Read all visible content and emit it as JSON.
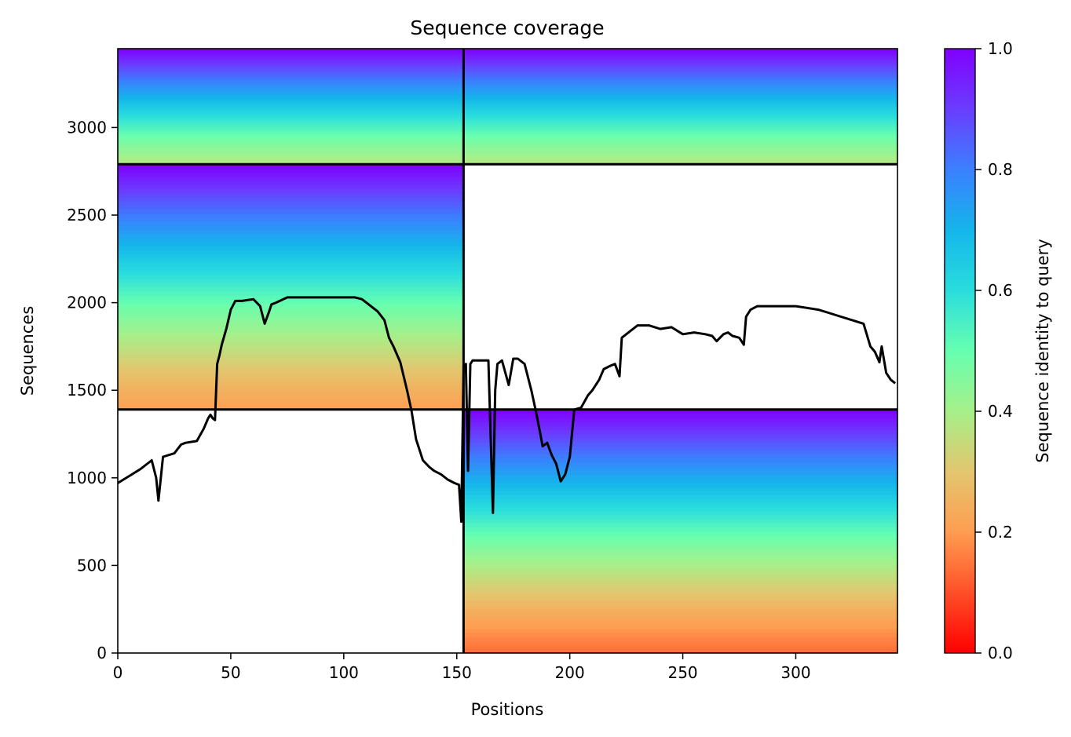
{
  "chart_data": {
    "type": "heatmap",
    "title": "Sequence coverage",
    "xlabel": "Positions",
    "ylabel": "Sequences",
    "colorbar_label": "Sequence identity to query",
    "xlim": [
      0,
      345
    ],
    "ylim": [
      0,
      3450
    ],
    "x_ticks": [
      0,
      50,
      100,
      150,
      200,
      250,
      300
    ],
    "y_ticks": [
      0,
      500,
      1000,
      1500,
      2000,
      2500,
      3000
    ],
    "colorbar_ticks": [
      0.0,
      0.2,
      0.4,
      0.6,
      0.8,
      1.0
    ],
    "colorbar_tick_labels": [
      "0.0",
      "0.2",
      "0.4",
      "0.6",
      "0.8",
      "1.0"
    ],
    "colormap": "rainbow",
    "colorbar_range": [
      0.0,
      1.0
    ],
    "grid": false,
    "segment_boundary_position": 153,
    "block_boundaries_sequences": [
      1390,
      2790
    ],
    "blocks": [
      {
        "x_range": [
          0,
          153
        ],
        "y_range": [
          2790,
          3450
        ],
        "identity_top": 1.0,
        "identity_bottom": 0.38
      },
      {
        "x_range": [
          153,
          345
        ],
        "y_range": [
          2790,
          3450
        ],
        "identity_top": 1.0,
        "identity_bottom": 0.38
      },
      {
        "x_range": [
          0,
          153
        ],
        "y_range": [
          1390,
          2790
        ],
        "identity_top": 1.0,
        "identity_bottom": 0.21
      },
      {
        "x_range": [
          153,
          345
        ],
        "y_range": [
          0,
          1390
        ],
        "identity_top": 1.0,
        "identity_bottom": 0.14
      }
    ],
    "coverage_line": {
      "x": [
        0,
        5,
        10,
        13,
        15,
        17,
        18,
        20,
        25,
        28,
        30,
        35,
        38,
        40,
        41,
        42,
        43,
        44,
        45,
        46,
        48,
        50,
        52,
        55,
        60,
        63,
        65,
        67,
        68,
        70,
        75,
        80,
        85,
        90,
        95,
        100,
        105,
        108,
        110,
        115,
        118,
        120,
        122,
        125,
        128,
        130,
        132,
        135,
        138,
        140,
        143,
        146,
        149,
        151,
        152,
        153,
        154,
        155,
        156,
        157,
        160,
        164,
        166,
        167,
        168,
        170,
        173,
        175,
        177,
        180,
        183,
        185,
        187,
        188,
        190,
        192,
        194,
        196,
        198,
        200,
        202,
        205,
        208,
        210,
        213,
        215,
        218,
        220,
        222,
        223,
        225,
        230,
        235,
        240,
        245,
        250,
        255,
        260,
        263,
        265,
        268,
        270,
        272,
        275,
        277,
        278,
        280,
        283,
        285,
        290,
        295,
        300,
        305,
        310,
        315,
        320,
        325,
        330,
        333,
        335,
        337,
        338,
        340,
        342,
        344
      ],
      "y": [
        970,
        1010,
        1050,
        1080,
        1100,
        1000,
        870,
        1120,
        1140,
        1190,
        1200,
        1210,
        1280,
        1340,
        1360,
        1340,
        1330,
        1650,
        1700,
        1760,
        1850,
        1960,
        2010,
        2010,
        2020,
        1980,
        1880,
        1950,
        1990,
        2000,
        2030,
        2030,
        2030,
        2030,
        2030,
        2030,
        2030,
        2020,
        2000,
        1950,
        1900,
        1800,
        1750,
        1660,
        1500,
        1380,
        1220,
        1100,
        1060,
        1040,
        1020,
        990,
        970,
        960,
        750,
        1640,
        1650,
        1040,
        1650,
        1670,
        1670,
        1670,
        800,
        1500,
        1650,
        1670,
        1530,
        1680,
        1680,
        1650,
        1500,
        1380,
        1250,
        1180,
        1200,
        1130,
        1080,
        980,
        1020,
        1120,
        1390,
        1400,
        1470,
        1500,
        1560,
        1620,
        1640,
        1650,
        1580,
        1800,
        1820,
        1870,
        1870,
        1850,
        1860,
        1820,
        1830,
        1820,
        1810,
        1780,
        1820,
        1830,
        1810,
        1800,
        1760,
        1920,
        1960,
        1980,
        1980,
        1980,
        1980,
        1980,
        1970,
        1960,
        1940,
        1920,
        1900,
        1880,
        1750,
        1720,
        1660,
        1750,
        1600,
        1560,
        1540
      ]
    }
  }
}
